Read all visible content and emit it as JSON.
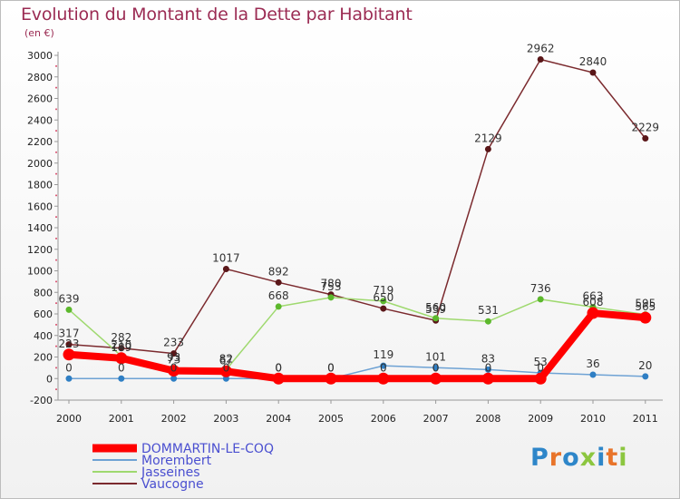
{
  "header": {
    "title": "Evolution du Montant de la Dette par Habitant",
    "subtitle": "(en €)"
  },
  "logo": {
    "text": "Proxiti",
    "letter_colors": [
      "#2e86c9",
      "#e8742a",
      "#2e86c9",
      "#8cc63f",
      "#2e86c9",
      "#e8742a",
      "#8cc63f"
    ]
  },
  "chart_data": {
    "type": "line",
    "title": "Evolution du Montant de la Dette par Habitant",
    "subtitle": "(en €)",
    "xlabel": "",
    "ylabel": "",
    "categories": [
      "2000",
      "2001",
      "2002",
      "2003",
      "2004",
      "2005",
      "2006",
      "2007",
      "2008",
      "2009",
      "2010",
      "2011"
    ],
    "ylim": [
      -200,
      3000
    ],
    "yticks": [
      -200,
      0,
      200,
      400,
      600,
      800,
      1000,
      1200,
      1400,
      1600,
      1800,
      2000,
      2200,
      2400,
      2600,
      2800,
      3000
    ],
    "grid": false,
    "legend_position": "bottom-left",
    "series": [
      {
        "name": "DOMMARTIN-LE-COQ",
        "color": "#ff0000",
        "values": [
          223,
          189,
          73,
          67,
          0,
          0,
          0,
          0,
          0,
          0,
          608,
          565
        ]
      },
      {
        "name": "Morembert",
        "color": "#6ea2d4",
        "values": [
          0,
          0,
          0,
          0,
          0,
          0,
          119,
          101,
          83,
          53,
          36,
          20
        ]
      },
      {
        "name": "Jasseines",
        "color": "#9fd96f",
        "values": [
          639,
          210,
          93,
          82,
          668,
          753,
          719,
          560,
          531,
          736,
          663,
          595
        ]
      },
      {
        "name": "Vaucogne",
        "color": "#7b2a2e",
        "values": [
          317,
          282,
          233,
          1017,
          892,
          780,
          650,
          539,
          2129,
          2962,
          2840,
          2229
        ]
      }
    ]
  }
}
